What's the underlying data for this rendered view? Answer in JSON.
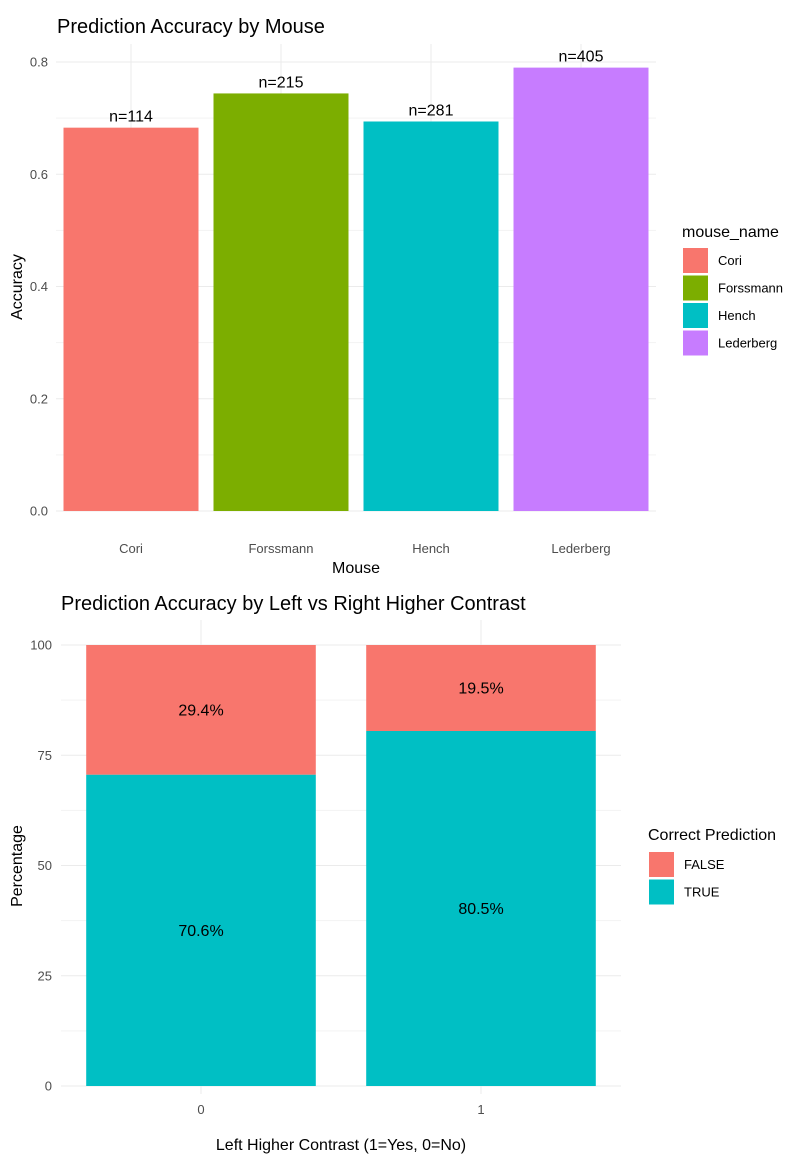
{
  "chart_data": [
    {
      "type": "bar",
      "title": "Prediction Accuracy by Mouse",
      "xlabel": "Mouse",
      "ylabel": "Accuracy",
      "categories": [
        "Cori",
        "Forssmann",
        "Hench",
        "Lederberg"
      ],
      "values": [
        0.683,
        0.744,
        0.694,
        0.79
      ],
      "bar_labels": [
        "n=114",
        "n=215",
        "n=281",
        "n=405"
      ],
      "colors": [
        "#F8766D",
        "#7CAE00",
        "#00BFC4",
        "#C77CFF"
      ],
      "ylim": [
        0,
        0.8
      ],
      "yticks": [
        "0.0",
        "0.2",
        "0.4",
        "0.6",
        "0.8"
      ],
      "grid": true,
      "legend": {
        "title": "mouse_name",
        "position": "right",
        "entries": [
          "Cori",
          "Forssmann",
          "Hench",
          "Lederberg"
        ]
      }
    },
    {
      "type": "bar",
      "stacked": true,
      "title": "Prediction Accuracy by Left vs Right Higher Contrast",
      "xlabel": "Left Higher Contrast (1=Yes, 0=No)",
      "ylabel": "Percentage",
      "categories": [
        "0",
        "1"
      ],
      "series": [
        {
          "name": "TRUE",
          "values": [
            70.6,
            80.5
          ],
          "labels": [
            "70.6%",
            "80.5%"
          ],
          "color": "#00BFC4"
        },
        {
          "name": "FALSE",
          "values": [
            29.4,
            19.5
          ],
          "labels": [
            "29.4%",
            "19.5%"
          ],
          "color": "#F8766D"
        }
      ],
      "ylim": [
        0,
        100
      ],
      "yticks": [
        "0",
        "25",
        "50",
        "75",
        "100"
      ],
      "grid": true,
      "legend": {
        "title": "Correct Prediction",
        "position": "right",
        "entries": [
          "FALSE",
          "TRUE"
        ],
        "colors": [
          "#F8766D",
          "#00BFC4"
        ]
      }
    }
  ]
}
